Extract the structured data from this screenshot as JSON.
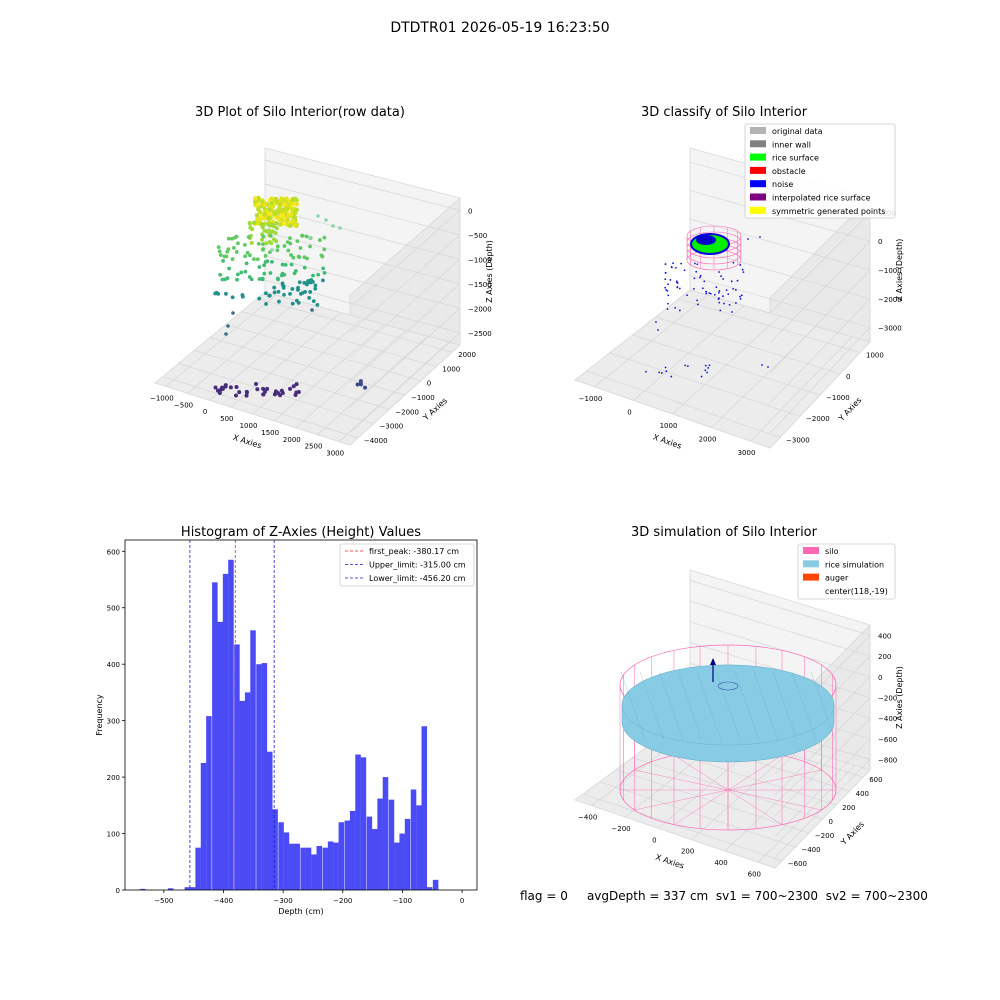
{
  "suptitle": "DTDTR01 2026-05-19 16:23:50",
  "footer": {
    "flag": "flag = 0",
    "avg_depth": "avgDepth = 337 cm",
    "sv1": "sv1 = 700~2300",
    "sv2": "sv2 = 700~2300"
  },
  "colors": {
    "histogram_bar": "#4b4bf5",
    "first_peak_line": "#ff2020",
    "limit_line": "#1a1acc",
    "silo": "#ff69b4",
    "rice_simulation": "#87cbe4",
    "auger": "#ff4500",
    "grey_pane": "#f2f2f2"
  },
  "chart_data": [
    {
      "type": "scatter",
      "projection": "3d",
      "title": "3D Plot of Silo Interior(row data)",
      "xlabel": "X Axies",
      "ylabel": "Y Axies",
      "zlabel": "Z Axies (Depth)",
      "x_ticks": [
        "−1000",
        "−500",
        "0",
        "500",
        "1000",
        "1500",
        "2000",
        "2500",
        "3000"
      ],
      "y_ticks": [
        "−4000",
        "−3000",
        "−2000",
        "−1000",
        "0",
        "1000",
        "2000"
      ],
      "z_ticks": [
        "0",
        "−500",
        "−1000",
        "−1500",
        "−2000",
        "−2500"
      ],
      "colormap": "viridis"
    },
    {
      "type": "scatter",
      "projection": "3d",
      "title": "3D classify of Silo Interior",
      "xlabel": "X Axies",
      "ylabel": "Y Axies",
      "zlabel": "Z Axies (Depth)",
      "x_ticks": [
        "−1000",
        "0",
        "1000",
        "2000",
        "3000"
      ],
      "y_ticks": [
        "−3000",
        "−2000",
        "−1000",
        "0",
        "1000"
      ],
      "z_ticks": [
        "1000",
        "0",
        "−1000",
        "−2000",
        "−3000"
      ],
      "legend_position": "top-right",
      "legend": [
        {
          "label": "original data",
          "color": "#b3b3b3"
        },
        {
          "label": "inner wall",
          "color": "#808080"
        },
        {
          "label": "rice surface",
          "color": "#00ff00"
        },
        {
          "label": "obstacle",
          "color": "#ff0000"
        },
        {
          "label": "noise",
          "color": "#0000ff"
        },
        {
          "label": "interpolated rice surface",
          "color": "#800080"
        },
        {
          "label": "symmetric generated points",
          "color": "#ffff00"
        }
      ]
    },
    {
      "type": "bar",
      "title": "Histogram of Z-Axies (Height) Values",
      "xlabel": "Depth (cm)",
      "ylabel": "Frequency",
      "xlim": [
        -565,
        25
      ],
      "ylim": [
        0,
        620
      ],
      "x_ticks": [
        -500,
        -400,
        -300,
        -200,
        -100,
        0
      ],
      "y_ticks": [
        0,
        100,
        200,
        300,
        400,
        500,
        600
      ],
      "bin_width": 9.23,
      "bins": [
        {
          "x": -540,
          "v": 2
        },
        {
          "x": -493,
          "v": 3
        },
        {
          "x": -465,
          "v": 5
        },
        {
          "x": -456,
          "v": 5
        },
        {
          "x": -447,
          "v": 75
        },
        {
          "x": -438,
          "v": 225
        },
        {
          "x": -429,
          "v": 308
        },
        {
          "x": -419,
          "v": 545
        },
        {
          "x": -410,
          "v": 475
        },
        {
          "x": -401,
          "v": 560
        },
        {
          "x": -392,
          "v": 585
        },
        {
          "x": -382,
          "v": 435
        },
        {
          "x": -373,
          "v": 335
        },
        {
          "x": -364,
          "v": 350
        },
        {
          "x": -355,
          "v": 460
        },
        {
          "x": -345,
          "v": 400
        },
        {
          "x": -336,
          "v": 402
        },
        {
          "x": -327,
          "v": 245
        },
        {
          "x": -318,
          "v": 143
        },
        {
          "x": -308,
          "v": 120
        },
        {
          "x": -299,
          "v": 102
        },
        {
          "x": -290,
          "v": 82
        },
        {
          "x": -281,
          "v": 82
        },
        {
          "x": -271,
          "v": 75
        },
        {
          "x": -262,
          "v": 75
        },
        {
          "x": -253,
          "v": 63
        },
        {
          "x": -244,
          "v": 78
        },
        {
          "x": -234,
          "v": 75
        },
        {
          "x": -225,
          "v": 86
        },
        {
          "x": -216,
          "v": 84
        },
        {
          "x": -207,
          "v": 120
        },
        {
          "x": -197,
          "v": 123
        },
        {
          "x": -188,
          "v": 140
        },
        {
          "x": -179,
          "v": 240
        },
        {
          "x": -170,
          "v": 235
        },
        {
          "x": -160,
          "v": 130
        },
        {
          "x": -151,
          "v": 108
        },
        {
          "x": -142,
          "v": 162
        },
        {
          "x": -133,
          "v": 200
        },
        {
          "x": -123,
          "v": 160
        },
        {
          "x": -114,
          "v": 84
        },
        {
          "x": -105,
          "v": 100
        },
        {
          "x": -96,
          "v": 126
        },
        {
          "x": -86,
          "v": 178
        },
        {
          "x": -77,
          "v": 150
        },
        {
          "x": -68,
          "v": 290
        },
        {
          "x": -59,
          "v": 5
        },
        {
          "x": -49,
          "v": 18
        }
      ],
      "lines": [
        {
          "label": "first_peak: -380.17 cm",
          "x": -380.17,
          "color": "#ff2020"
        },
        {
          "label": "Upper_limit: -315.00 cm",
          "x": -315.0,
          "color": "#1a1acc"
        },
        {
          "label": "Lower_limit: -456.20 cm",
          "x": -456.2,
          "color": "#1a1acc"
        }
      ],
      "legend_position": "top-right"
    },
    {
      "type": "surface",
      "projection": "3d",
      "title": "3D simulation of Silo Interior",
      "xlabel": "X Axies",
      "ylabel": "Y Axies",
      "zlabel": "Z Axies (Depth)",
      "x_ticks": [
        "−400",
        "−200",
        "0",
        "200",
        "400",
        "600"
      ],
      "y_ticks": [
        "−600",
        "−400",
        "−200",
        "0",
        "200",
        "400",
        "600"
      ],
      "z_ticks": [
        "400",
        "200",
        "0",
        "−200",
        "−400",
        "−600",
        "−800"
      ],
      "legend_position": "top-right",
      "legend": [
        {
          "label": "silo",
          "color": "#ff69b4"
        },
        {
          "label": "rice simulation",
          "color": "#87cbe4"
        },
        {
          "label": "auger",
          "color": "#ff4500"
        },
        {
          "label": "center(118,-19)",
          "color": ""
        }
      ]
    }
  ]
}
